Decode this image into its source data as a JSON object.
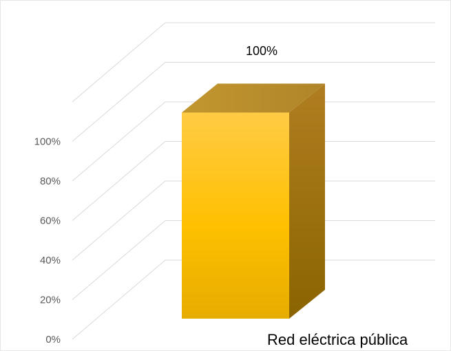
{
  "chart_data": {
    "type": "bar",
    "categories": [
      "Red eléctrica pública"
    ],
    "values": [
      100
    ],
    "data_labels": [
      "100%"
    ],
    "yticks": [
      "0%",
      "20%",
      "40%",
      "60%",
      "80%",
      "100%"
    ],
    "ylim": [
      0,
      120
    ],
    "grid": true,
    "legend": "none",
    "bar_color": "#FFC000",
    "title": "",
    "xlabel": "",
    "ylabel": ""
  }
}
